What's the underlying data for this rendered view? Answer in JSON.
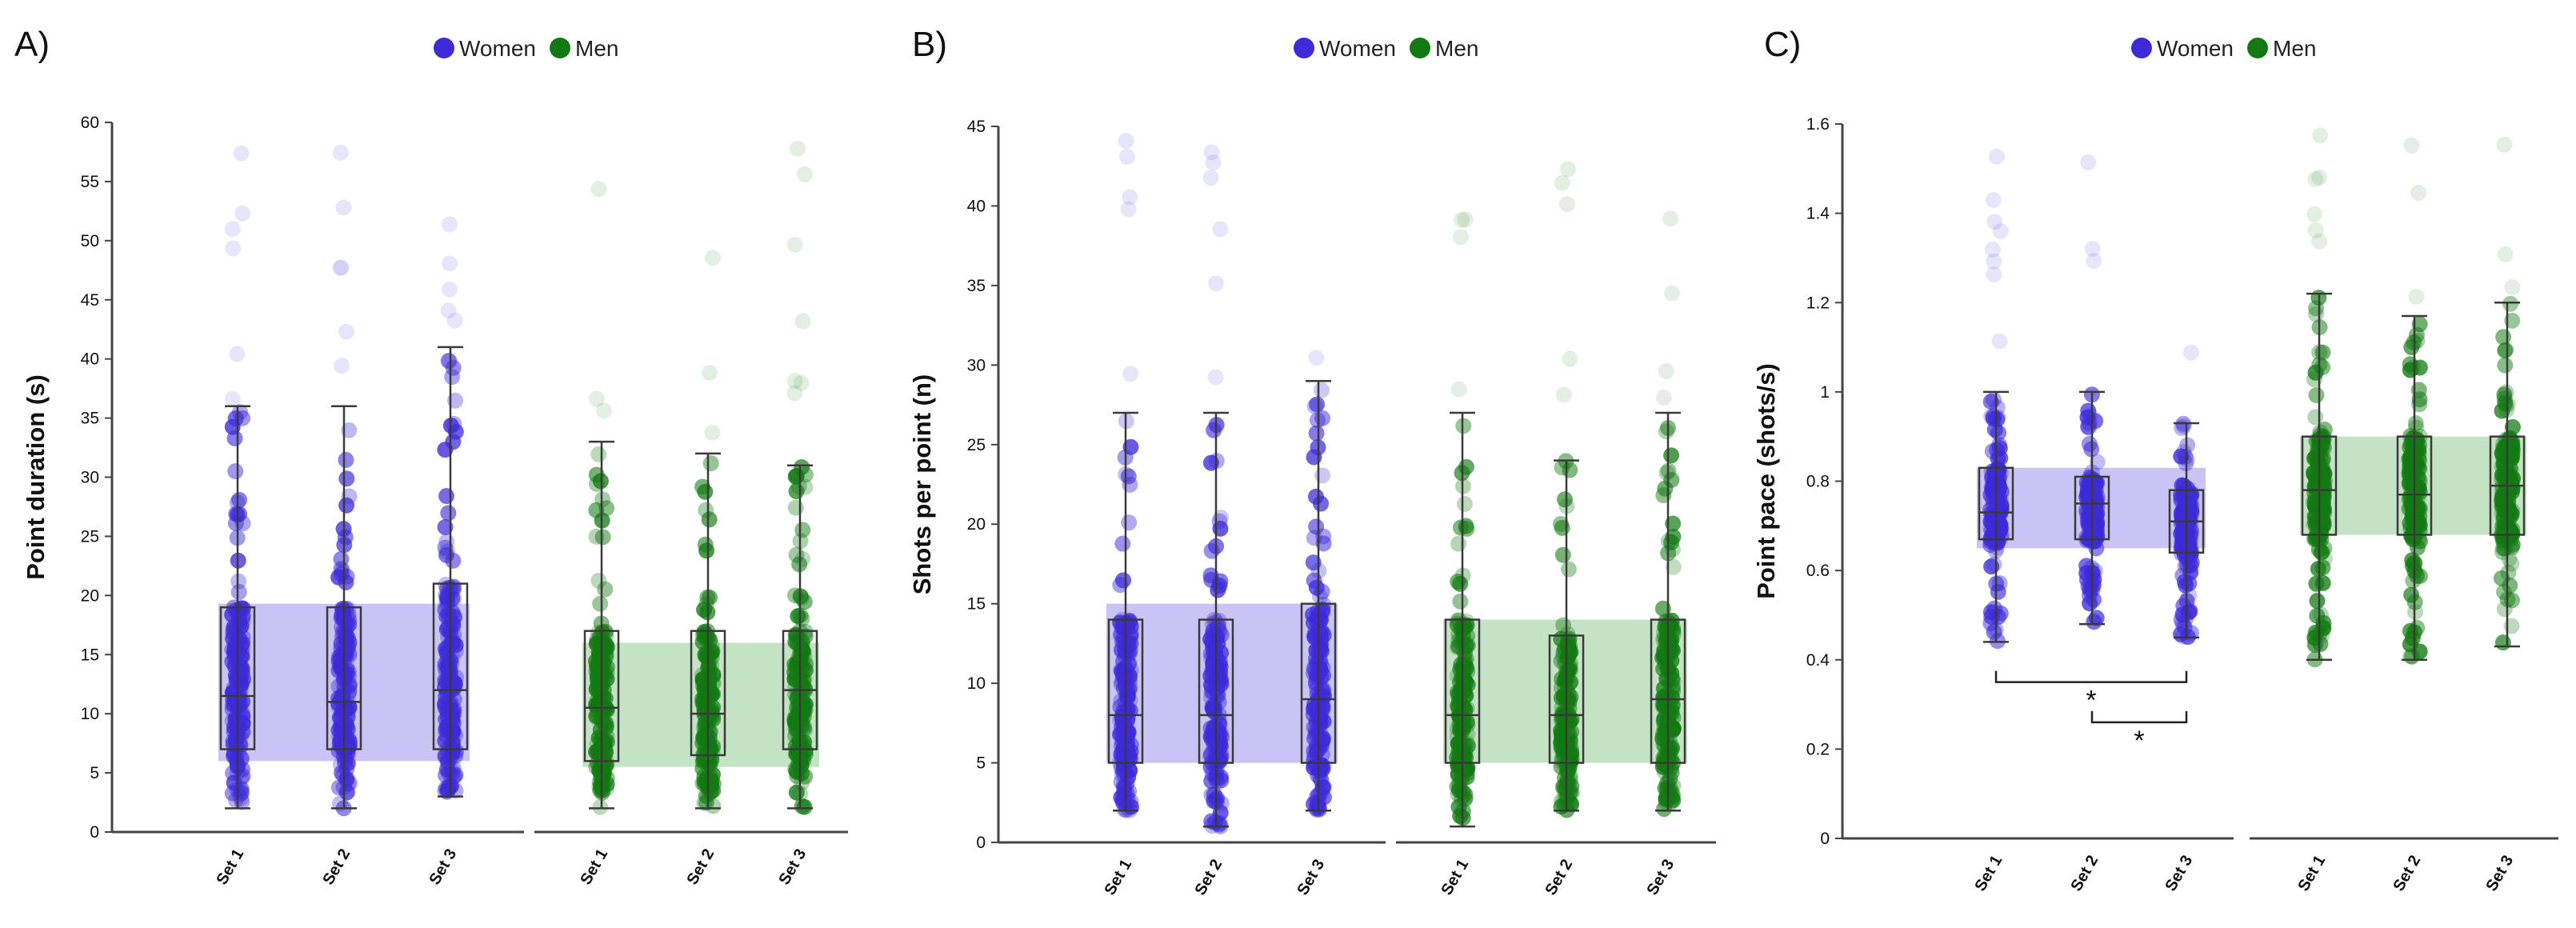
{
  "colors": {
    "women": "#3d2bd9",
    "men": "#137a13",
    "women_band": "#c9c4f5",
    "men_band": "#c4e2c4",
    "axis": "#444444"
  },
  "legend": {
    "women": "Women",
    "men": "Men"
  },
  "chart_data": [
    {
      "type": "box",
      "panel": "A)",
      "ylabel": "Point duration (s)",
      "ylim": [
        0,
        60
      ],
      "yticks": [
        0,
        5,
        10,
        15,
        20,
        25,
        30,
        35,
        40,
        45,
        50,
        55,
        60
      ],
      "categories": [
        "Set 1",
        "Set 2",
        "Set 3"
      ],
      "series": [
        {
          "name": "Women",
          "band": [
            6,
            19.3
          ],
          "boxes": [
            {
              "min": 2,
              "q1": 7,
              "median": 11.5,
              "q3": 19,
              "max": 36
            },
            {
              "min": 2,
              "q1": 7,
              "median": 11,
              "q3": 19,
              "max": 36
            },
            {
              "min": 3,
              "q1": 7,
              "median": 12,
              "q3": 21,
              "max": 41
            }
          ]
        },
        {
          "name": "Men",
          "band": [
            5.5,
            16
          ],
          "boxes": [
            {
              "min": 2,
              "q1": 6,
              "median": 10.5,
              "q3": 17,
              "max": 33
            },
            {
              "min": 2,
              "q1": 6.5,
              "median": 10,
              "q3": 17,
              "max": 32
            },
            {
              "min": 2,
              "q1": 7,
              "median": 12,
              "q3": 17,
              "max": 31
            }
          ]
        }
      ]
    },
    {
      "type": "box",
      "panel": "B)",
      "ylabel": "Shots per point (n)",
      "ylim": [
        0,
        45
      ],
      "yticks": [
        0,
        5,
        10,
        15,
        20,
        25,
        30,
        35,
        40,
        45
      ],
      "categories": [
        "Set 1",
        "Set 2",
        "Set 3"
      ],
      "series": [
        {
          "name": "Women",
          "band": [
            5,
            15
          ],
          "boxes": [
            {
              "min": 2,
              "q1": 5,
              "median": 8,
              "q3": 14,
              "max": 27
            },
            {
              "min": 1,
              "q1": 5,
              "median": 8,
              "q3": 14,
              "max": 27
            },
            {
              "min": 2,
              "q1": 5,
              "median": 9,
              "q3": 15,
              "max": 29
            }
          ]
        },
        {
          "name": "Men",
          "band": [
            5,
            14
          ],
          "boxes": [
            {
              "min": 1,
              "q1": 5,
              "median": 8,
              "q3": 14,
              "max": 27
            },
            {
              "min": 2,
              "q1": 5,
              "median": 8,
              "q3": 13,
              "max": 24
            },
            {
              "min": 2,
              "q1": 5,
              "median": 9,
              "q3": 14,
              "max": 27
            }
          ]
        }
      ]
    },
    {
      "type": "box",
      "panel": "C)",
      "ylabel": "Point pace (shots/s)",
      "ylim": [
        0,
        1.6
      ],
      "yticks": [
        0,
        0.2,
        0.4,
        0.6,
        0.8,
        1,
        1.2,
        1.4,
        1.6
      ],
      "ytick_labels": [
        "0",
        "0.2",
        "0.4",
        "0.6",
        "0.8",
        "1",
        "1.2",
        "1.4",
        "1.6"
      ],
      "categories": [
        "Set 1",
        "Set 2",
        "Set 3"
      ],
      "series": [
        {
          "name": "Women",
          "band": [
            0.65,
            0.83
          ],
          "boxes": [
            {
              "min": 0.44,
              "q1": 0.67,
              "median": 0.73,
              "q3": 0.83,
              "max": 1.0
            },
            {
              "min": 0.48,
              "q1": 0.67,
              "median": 0.75,
              "q3": 0.81,
              "max": 1.0
            },
            {
              "min": 0.45,
              "q1": 0.64,
              "median": 0.71,
              "q3": 0.78,
              "max": 0.93
            }
          ]
        },
        {
          "name": "Men",
          "band": [
            0.68,
            0.9
          ],
          "boxes": [
            {
              "min": 0.4,
              "q1": 0.68,
              "median": 0.78,
              "q3": 0.9,
              "max": 1.22
            },
            {
              "min": 0.4,
              "q1": 0.68,
              "median": 0.77,
              "q3": 0.9,
              "max": 1.17
            },
            {
              "min": 0.43,
              "q1": 0.68,
              "median": 0.79,
              "q3": 0.9,
              "max": 1.2
            }
          ]
        }
      ],
      "annotations": [
        {
          "text": "*",
          "series": "Women",
          "from": "Set 1",
          "to": "Set 3",
          "y": 0.35
        },
        {
          "text": "*",
          "series": "Women",
          "from": "Set 2",
          "to": "Set 3",
          "y": 0.26
        }
      ]
    }
  ]
}
